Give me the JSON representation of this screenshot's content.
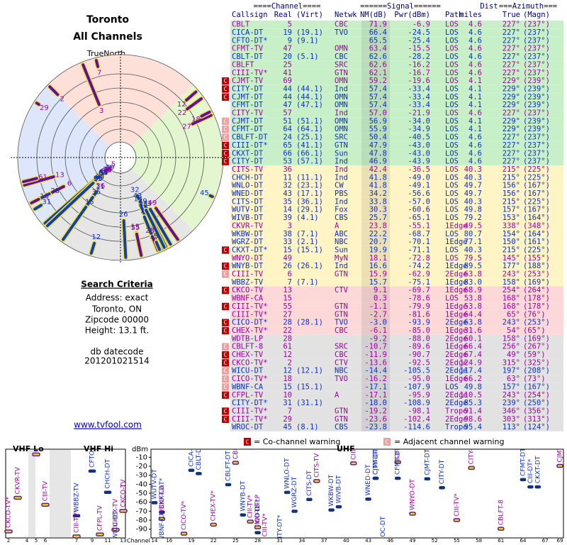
{
  "header": {
    "city": "Toronto",
    "subtitle": "All Channels",
    "north": "TrueNorth"
  },
  "criteria": {
    "title": "Search Criteria",
    "lines": [
      "Address: exact",
      "Toronto, ON",
      "Zipcode 00000",
      "Height: 13.1 ft."
    ],
    "db": [
      "db datecode",
      "201201021514"
    ],
    "link": "www.tvfool.com"
  },
  "table": {
    "groups": [
      "====Channel====",
      "======Signal======",
      "Dist",
      "===Azimuth==="
    ],
    "columns": [
      "Callsign",
      "Real",
      "(Virt)",
      "Netwk",
      "NM(dB)",
      "Pwr(dBm)",
      "Path",
      "miles",
      "True",
      "(Magn)"
    ],
    "rows": [
      [
        "CBLT",
        5,
        null,
        "CBC",
        "71.9",
        "-6.9",
        "LOS",
        "4.6",
        "227°",
        "(237°)"
      ],
      [
        "CICA-DT",
        19,
        "(19.1)",
        "TVO",
        "66.4",
        "-24.5",
        "LOS",
        "4.6",
        "227°",
        "(237°)"
      ],
      [
        "CFTO-DT*",
        9,
        "(9.1)",
        null,
        "65.5",
        "-25.4",
        "LOS",
        "4.6",
        "227°",
        "(237°)"
      ],
      [
        "CFMT-TV",
        47,
        null,
        "OMN",
        "63.4",
        "-15.5",
        "LOS",
        "4.6",
        "227°",
        "(237°)"
      ],
      [
        "CBLT-DT",
        20,
        "(5.1)",
        "CBC",
        "62.6",
        "-28.2",
        "LOS",
        "4.6",
        "227°",
        "(237°)"
      ],
      [
        "CBLFT",
        25,
        null,
        "SRC",
        "62.6",
        "-16.2",
        "LOS",
        "4.6",
        "227°",
        "(237°)"
      ],
      [
        "CIII-TV*",
        41,
        null,
        "GTN",
        "62.1",
        "-16.7",
        "LOS",
        "4.6",
        "227°",
        "(237°)"
      ],
      [
        "CJMT-TV",
        69,
        null,
        "OMN",
        "59.2",
        "-19.6",
        "LOS",
        "4.1",
        "229°",
        "(239°)"
      ],
      [
        "CITY-DT",
        44,
        "(44.1)",
        "Ind",
        "57.4",
        "-33.4",
        "LOS",
        "4.1",
        "229°",
        "(239°)"
      ],
      [
        "CJMT-DT",
        44,
        "(44.1)",
        "OMN",
        "57.4",
        "-33.4",
        "LOS",
        "4.1",
        "229°",
        "(239°)"
      ],
      [
        "CFMT-DT",
        47,
        "(47.1)",
        "OMN",
        "57.4",
        "-33.4",
        "LOS",
        "4.1",
        "229°",
        "(239°)"
      ],
      [
        "CITY-TV",
        57,
        null,
        "Ind",
        "57.0",
        "-21.9",
        "LOS",
        "4.6",
        "227°",
        "(237°)"
      ],
      [
        "CJMT-DT",
        51,
        "(51.1)",
        "OMN",
        "56.9",
        "-34.0",
        "LOS",
        "4.1",
        "229°",
        "(239°)"
      ],
      [
        "CFMT-DT",
        64,
        "(64.1)",
        "OMN",
        "55.9",
        "-34.9",
        "LOS",
        "4.1",
        "229°",
        "(239°)"
      ],
      [
        "CBLFT-DT",
        24,
        "(25.1)",
        "SRC",
        "50.4",
        "-40.5",
        "LOS",
        "4.6",
        "227°",
        "(237°)"
      ],
      [
        "CIII-DT*",
        65,
        "(41.1)",
        "GTN",
        "47.9",
        "-43.0",
        "LOS",
        "4.6",
        "227°",
        "(237°)"
      ],
      [
        "CKXT-DT",
        66,
        "(66.1)",
        "Sun",
        "47.8",
        "-43.0",
        "LOS",
        "4.6",
        "227°",
        "(237°)"
      ],
      [
        "CITY-DT",
        53,
        "(57.1)",
        "Ind",
        "46.9",
        "-43.9",
        "LOS",
        "4.6",
        "227°",
        "(237°)"
      ],
      [
        "CITS-TV",
        36,
        null,
        "Ind",
        "42.4",
        "-36.5",
        "LOS",
        "40.3",
        "215°",
        "(225°)"
      ],
      [
        "CHCH-DT",
        11,
        "(11.1)",
        "Ind",
        "41.8",
        "-49.0",
        "LOS",
        "40.3",
        "215°",
        "(225°)"
      ],
      [
        "WNLO-DT",
        32,
        "(23.1)",
        "CW",
        "41.8",
        "-49.1",
        "LOS",
        "49.7",
        "156°",
        "(167°)"
      ],
      [
        "WNED-DT",
        43,
        "(17.1)",
        "PBS",
        "34.2",
        "-56.6",
        "LOS",
        "49.7",
        "156°",
        "(167°)"
      ],
      [
        "CITS-DT",
        35,
        "(36.1)",
        "Ind",
        "33.8",
        "-57.0",
        "LOS",
        "40.3",
        "215°",
        "(225°)"
      ],
      [
        "WUTV-DT",
        14,
        "(29.1)",
        "Fox",
        "30.3",
        "-60.6",
        "LOS",
        "49.8",
        "157°",
        "(167°)"
      ],
      [
        "WIVB-DT",
        39,
        "(4.1)",
        "CBS",
        "25.7",
        "-65.1",
        "LOS",
        "79.2",
        "153°",
        "(164°)"
      ],
      [
        "CKVR-TV",
        3,
        null,
        "A",
        "23.8",
        "-55.1",
        "1Edge",
        "49.5",
        "338°",
        "(348°)"
      ],
      [
        "WKBW-DT",
        38,
        "(7.1)",
        "ABC",
        "22.2",
        "-68.7",
        "LOS",
        "80.7",
        "154°",
        "(164°)"
      ],
      [
        "WGRZ-DT",
        33,
        "(2.1)",
        "NBC",
        "20.7",
        "-70.1",
        "1Edge",
        "77.1",
        "150°",
        "(161°)"
      ],
      [
        "CKXT-DT*",
        15,
        "(15.1)",
        "Sun",
        "19.9",
        "-71.1",
        "LOS",
        "40.3",
        "215°",
        "(225°)"
      ],
      [
        "WNYO-DT",
        49,
        null,
        "MyN",
        "18.1",
        "-72.8",
        "LOS",
        "79.5",
        "145°",
        "(155°)"
      ],
      [
        "WNYB-DT",
        26,
        "(26.1)",
        "Ind",
        "16.6",
        "-74.2",
        "1Edge",
        "89.5",
        "177°",
        "(188°)"
      ],
      [
        "CIII-TV",
        6,
        null,
        "GTN",
        "15.9",
        "-62.9",
        "2Edge",
        "63.8",
        "243°",
        "(253°)"
      ],
      [
        "WBBZ-TV",
        7,
        "(7.1)",
        null,
        "15.7",
        "-75.1",
        "1Edge",
        "83.0",
        "158°",
        "(169°)"
      ],
      [
        "CKCO-TV",
        13,
        null,
        "CTV",
        "9.1",
        "-69.7",
        "1Edge",
        "68.9",
        "254°",
        "(264°)"
      ],
      [
        "WBNF-CA",
        15,
        null,
        null,
        "0.3",
        "-78.6",
        "LOS",
        "53.8",
        "168°",
        "(178°)"
      ],
      [
        "CIII-TV*",
        55,
        null,
        "GTN",
        "-1.1",
        "-79.9",
        "1Edge",
        "53.8",
        "168°",
        "(178°)"
      ],
      [
        "CIII-TV*",
        27,
        null,
        "GTN",
        "-2.7",
        "-81.6",
        "1Edge",
        "64.4",
        "65°",
        "(76°)"
      ],
      [
        "CICO-DT*",
        28,
        "(28.1)",
        "TVO",
        "-3.0",
        "-93.9",
        "2Edge",
        "63.8",
        "243°",
        "(253°)"
      ],
      [
        "CHEX-TV*",
        22,
        null,
        "CBC",
        "-6.1",
        "-85.0",
        "1Edge",
        "31.6",
        "54°",
        "(65°)"
      ],
      [
        "WDTB-LP",
        28,
        null,
        null,
        "-9.2",
        "-88.0",
        "2Edge",
        "60.1",
        "158°",
        "(169°)"
      ],
      [
        "CBLFT-8",
        61,
        null,
        "SRC",
        "-10.7",
        "-89.6",
        "1Edge",
        "66.4",
        "256°",
        "(267°)"
      ],
      [
        "CHEX-TV",
        12,
        null,
        "CBC",
        "-11.9",
        "-90.7",
        "2Edge",
        "67.4",
        "49°",
        "(59°)"
      ],
      [
        "CKCO-TV*",
        2,
        null,
        "CTV",
        "-13.6",
        "-92.5",
        "2Edge",
        "124.9",
        "315°",
        "(325°)"
      ],
      [
        "WICU-DT",
        12,
        "(12.1)",
        "NBC",
        "-14.4",
        "-105.5",
        "2Edge",
        "117.4",
        "197°",
        "(208°)"
      ],
      [
        "CICO-TV*",
        18,
        null,
        "TVO",
        "-16.2",
        "-95.0",
        "1Edge",
        "66.2",
        "63°",
        "(73°)"
      ],
      [
        "WBNF-CA",
        15,
        "(15.1)",
        null,
        "-17.1",
        "-107.9",
        "LOS",
        "49.8",
        "157°",
        "(167°)"
      ],
      [
        "CFPL-TV",
        10,
        null,
        "A",
        "-17.1",
        "-95.9",
        "2Edge",
        "110.5",
        "243°",
        "(254°)"
      ],
      [
        "CITY-DT*",
        31,
        "(31.1)",
        null,
        "-18.0",
        "-108.9",
        "2Edge",
        "85.3",
        "239°",
        "(250°)"
      ],
      [
        "CIII-TV*",
        7,
        null,
        "GTN",
        "-19.2",
        "-98.1",
        "Tropo",
        "91.4",
        "346°",
        "(356°)"
      ],
      [
        "CIII-TV*",
        29,
        null,
        "GTN",
        "-23.6",
        "-102.4",
        "2Edge",
        "98.6",
        "303°",
        "(313°)"
      ],
      [
        "WROC-DT",
        45,
        "(8.1)",
        "CBS",
        "-23.8",
        "-114.6",
        "Tropo",
        "95.4",
        "113°",
        "(124°)"
      ]
    ],
    "styles": [
      [
        "#c8f0c8",
        null
      ],
      [
        "#c8f0c8",
        null
      ],
      [
        "#c8f0c8",
        null
      ],
      [
        "#c8f0c8",
        null
      ],
      [
        "#c8f0c8",
        null
      ],
      [
        "#c8f0c8",
        null
      ],
      [
        "#c8f0c8",
        null
      ],
      [
        "#c8f0c8",
        "co"
      ],
      [
        "#c8f0c8",
        "co"
      ],
      [
        "#c8f0c8",
        "co"
      ],
      [
        "#c8f0c8",
        null
      ],
      [
        "#c8f0c8",
        null
      ],
      [
        "#c8f0c8",
        "adj"
      ],
      [
        "#c8f0c8",
        "adj"
      ],
      [
        "#c8f0c8",
        "adj"
      ],
      [
        "#c8f0c8",
        "co"
      ],
      [
        "#c8f0c8",
        "co"
      ],
      [
        "#c8f0c8",
        "co"
      ],
      [
        "#fff4c4",
        null
      ],
      [
        "#fff4c4",
        null
      ],
      [
        "#fff4c4",
        null
      ],
      [
        "#fff4c4",
        null
      ],
      [
        "#fff4c4",
        null
      ],
      [
        "#fff4c4",
        null
      ],
      [
        "#fff4c4",
        null
      ],
      [
        "#fff4c4",
        null
      ],
      [
        "#fff4c4",
        null
      ],
      [
        "#fff4c4",
        null
      ],
      [
        "#fff4c4",
        "co"
      ],
      [
        "#fff4c4",
        null
      ],
      [
        "#fff4c4",
        "co"
      ],
      [
        "#fff4c4",
        "adj"
      ],
      [
        "#fff4c4",
        null
      ],
      [
        "#fcd8d8",
        "co"
      ],
      [
        "#fcd8d8",
        null
      ],
      [
        "#fcd8d8",
        "co"
      ],
      [
        "#fcd8d8",
        null
      ],
      [
        "#fcd8d8",
        "co"
      ],
      [
        "#fcd8d8",
        "co"
      ],
      [
        "#e2e2e2",
        null
      ],
      [
        "#e2e2e2",
        "adj"
      ],
      [
        "#e2e2e2",
        "co"
      ],
      [
        "#e2e2e2",
        "co"
      ],
      [
        "#e2e2e2",
        "adj"
      ],
      [
        "#e2e2e2",
        "adj"
      ],
      [
        "#e2e2e2",
        "adj"
      ],
      [
        "#e2e2e2",
        "co"
      ],
      [
        "#e2e2e2",
        null
      ],
      [
        "#e2e2e2",
        "co"
      ],
      [
        "#e2e2e2",
        "co"
      ],
      [
        "#e2e2e2",
        null
      ]
    ]
  },
  "legend": {
    "icon": "C",
    "co": "= Co-channel warning",
    "adj": "= Adjacent channel warning"
  },
  "spectrum": {
    "vhf_lo": "VHF Lo",
    "vhf_hi": "VHF Hi",
    "uhf": "UHF",
    "unit": "dBm",
    "xlabel": "Channel",
    "ylim": [
      -5,
      -95
    ],
    "yticks": [
      -10,
      -20,
      -30,
      -40,
      -50,
      -60,
      -70,
      -80,
      -90
    ],
    "channels": [
      2,
      4,
      5,
      6,
      7,
      9,
      11,
      13,
      14,
      16,
      19,
      22,
      25,
      28,
      31,
      34,
      37,
      40,
      43,
      46,
      49,
      52,
      55,
      58,
      61,
      64,
      67,
      69
    ]
  }
}
